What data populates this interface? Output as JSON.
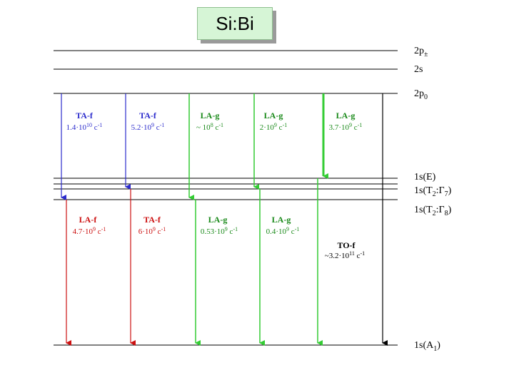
{
  "title": "Si:Bi",
  "levels": [
    {
      "id": "2p-pm",
      "label": "2p±"
    },
    {
      "id": "2s",
      "label": "2s"
    },
    {
      "id": "2p0",
      "label": "2p0"
    },
    {
      "id": "1s-E",
      "label": "1s(E)"
    },
    {
      "id": "1s-T2G7",
      "label": "1s(T2:Γ7)"
    },
    {
      "id": "1s-T2G8",
      "label": "1s(T2:Γ8)"
    },
    {
      "id": "1s-A1",
      "label": "1s(A1)"
    }
  ],
  "transitions_upper": [
    {
      "name": "TA-f",
      "rate": "1.4·1010 c-1",
      "color": "#2b2bcc"
    },
    {
      "name": "TA-f",
      "rate": "5.2·109 c-1",
      "color": "#2b2bcc"
    },
    {
      "name": "LA-g",
      "rate": "~ 108 c-1",
      "color": "#1a8a1a"
    },
    {
      "name": "LA-g",
      "rate": "2·109 c-1",
      "color": "#1a8a1a"
    },
    {
      "name": "LA-g",
      "rate": "3.7·109 c-1",
      "color": "#1a8a1a"
    }
  ],
  "transitions_lower": [
    {
      "name": "LA-f",
      "rate": "4.7·109 c-1",
      "color": "#cc1111"
    },
    {
      "name": "TA-f",
      "rate": "6·109 c-1",
      "color": "#cc1111"
    },
    {
      "name": "LA-g",
      "rate": "0.53·109 c-1",
      "color": "#1a8a1a"
    },
    {
      "name": "LA-g",
      "rate": "0.4·109 c-1",
      "color": "#1a8a1a"
    },
    {
      "name": "TO-f",
      "rate": "~3.2·1011 c-1",
      "color": "#000000"
    }
  ]
}
